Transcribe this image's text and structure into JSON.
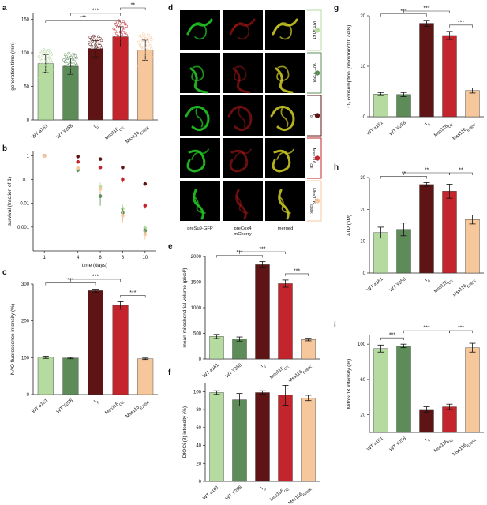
{
  "colors": {
    "wt_a161": "#b5dba0",
    "wt_y258": "#5d8c58",
    "l0": "#5e1414",
    "mss_oe": "#c4242b",
    "mss_e285k": "#f7c79c",
    "microscopy_green": "#22c322",
    "microscopy_red": "#c21a1a",
    "microscopy_yellow": "#c6c424"
  },
  "categories": [
    "WT a161",
    "WT Y258",
    "I",
    "Mss116",
    "Mss116"
  ],
  "category_subscripts": [
    "",
    "",
    "0",
    "OE",
    "E285K"
  ],
  "panel_letters": {
    "a": "a",
    "b": "b",
    "c": "c",
    "d": "d",
    "e": "e",
    "f": "f",
    "g": "g",
    "h": "h",
    "i": "i"
  },
  "microscopy": {
    "col_labels": [
      "preSu9-GFP",
      "preCox4\nmCherry",
      "merged"
    ],
    "row_labels": [
      "WT a161",
      "WT Y258",
      "I",
      "Mss116",
      "Mss116"
    ],
    "row_subscripts": [
      "",
      "",
      "0",
      "OE",
      "E285K"
    ]
  },
  "chart_data": [
    {
      "panel": "a",
      "type": "bar",
      "ylabel": "generation time (min)",
      "ylim": [
        0,
        160
      ],
      "yticks": [
        0,
        50,
        100,
        150
      ],
      "values": [
        84,
        80,
        106,
        124,
        104
      ],
      "errors": [
        13,
        12,
        12,
        15,
        15
      ],
      "significance": [
        {
          "from": 0,
          "to": 3,
          "label": "***"
        },
        {
          "from": 1,
          "to": 3,
          "label": "***"
        },
        {
          "from": 3,
          "to": 4,
          "label": "**"
        }
      ]
    },
    {
      "panel": "b",
      "type": "scatter",
      "ylabel": "survival (fraction of 1)",
      "xlabel": "time (days)",
      "x": [
        1,
        4,
        6,
        8,
        10
      ],
      "xlim": [
        0,
        11
      ],
      "y_scale": "log",
      "ylim": [
        0.0001,
        1.5
      ],
      "yticks": [
        1,
        0.1,
        0.01,
        0.001
      ],
      "ytick_labels": [
        "1",
        "0.1",
        "0.01",
        "0.001"
      ],
      "series": [
        {
          "values": [
            1,
            0.3,
            0.05,
            0.006,
            0.0009
          ],
          "errors": [
            0,
            0.05,
            0.025,
            0.003,
            0.0003
          ]
        },
        {
          "values": [
            1,
            0.25,
            0.02,
            0.004,
            0.0007
          ],
          "errors": [
            0,
            0.05,
            0.012,
            0.002,
            0.0002
          ]
        },
        {
          "values": [
            1,
            0.92,
            0.72,
            0.32,
            0.065
          ],
          "errors": [
            0,
            0.05,
            0.06,
            0.04,
            0.01
          ]
        },
        {
          "values": [
            1,
            0.55,
            0.32,
            0.1,
            0.008
          ],
          "errors": [
            0,
            0.06,
            0.05,
            0.025,
            0.002
          ]
        },
        {
          "values": [
            1,
            0.3,
            0.04,
            0.003,
            0.0005
          ],
          "errors": [
            0,
            0.05,
            0.015,
            0.0015,
            0.0002
          ]
        }
      ]
    },
    {
      "panel": "c",
      "type": "bar",
      "ylabel": "NAO fluorescence intensity (%)",
      "ylim": [
        0,
        300
      ],
      "yticks": [
        0,
        100,
        200,
        300
      ],
      "values": [
        101,
        99,
        282,
        242,
        97
      ],
      "errors": [
        3,
        2,
        4,
        10,
        2
      ],
      "significance": [
        {
          "from": 0,
          "to": 2,
          "label": "***"
        },
        {
          "from": 1,
          "to": 3,
          "label": "***"
        },
        {
          "from": 3,
          "to": 4,
          "label": "***"
        }
      ]
    },
    {
      "panel": "e",
      "type": "bar",
      "ylabel": "mean mitochondrial volume (pixel³)",
      "ylim": [
        0,
        2000
      ],
      "yticks": [
        0,
        500,
        1000,
        1500,
        2000
      ],
      "values": [
        440,
        390,
        1840,
        1470,
        380
      ],
      "errors": [
        40,
        40,
        60,
        70,
        25
      ],
      "significance": [
        {
          "from": 0,
          "to": 2,
          "label": "***"
        },
        {
          "from": 1,
          "to": 3,
          "label": "***"
        },
        {
          "from": 3,
          "to": 4,
          "label": "***"
        }
      ]
    },
    {
      "panel": "f",
      "type": "bar",
      "ylabel": "DIOC6(3) intensity (%)",
      "ylim": [
        0,
        110
      ],
      "yticks": [
        0,
        20,
        40,
        60,
        80,
        100
      ],
      "values": [
        99,
        91,
        99,
        96,
        93
      ],
      "errors": [
        2,
        7,
        2,
        11,
        3
      ],
      "significance": []
    },
    {
      "panel": "g",
      "type": "bar",
      "ylabel": "O₂ consumption (nmol/min/10⁷ cells)",
      "ylim": [
        0,
        20
      ],
      "yticks": [
        0,
        10,
        20
      ],
      "values": [
        4.5,
        4.4,
        18.5,
        16.1,
        5.2
      ],
      "errors": [
        0.3,
        0.4,
        0.6,
        0.8,
        0.5
      ],
      "significance": [
        {
          "from": 0,
          "to": 2,
          "label": "***"
        },
        {
          "from": 1,
          "to": 3,
          "label": "***"
        },
        {
          "from": 3,
          "to": 4,
          "label": "***"
        }
      ]
    },
    {
      "panel": "h",
      "type": "bar",
      "ylabel": "ATP (nM)",
      "ylim": [
        0,
        30
      ],
      "yticks": [
        0,
        10,
        20,
        30
      ],
      "values": [
        12.7,
        13.7,
        27.8,
        25.7,
        16.8
      ],
      "errors": [
        1.7,
        2.0,
        0.6,
        2.2,
        1.4
      ],
      "significance": [
        {
          "from": 0,
          "to": 2,
          "label": "**"
        },
        {
          "from": 1,
          "to": 3,
          "label": "**"
        },
        {
          "from": 3,
          "to": 4,
          "label": "**"
        }
      ]
    },
    {
      "panel": "i",
      "type": "bar",
      "ylabel": "MitoSOX intensity (%)",
      "ylim": [
        0,
        110
      ],
      "yticks": [
        20,
        60,
        100
      ],
      "values": [
        95,
        98,
        26,
        29,
        96
      ],
      "errors": [
        4,
        2,
        3,
        3,
        5
      ],
      "significance": [
        {
          "from": 0,
          "to": 1,
          "label": "***"
        },
        {
          "from": 1,
          "to": 3,
          "label": "***"
        },
        {
          "from": 3,
          "to": 4,
          "label": "***"
        }
      ]
    }
  ]
}
